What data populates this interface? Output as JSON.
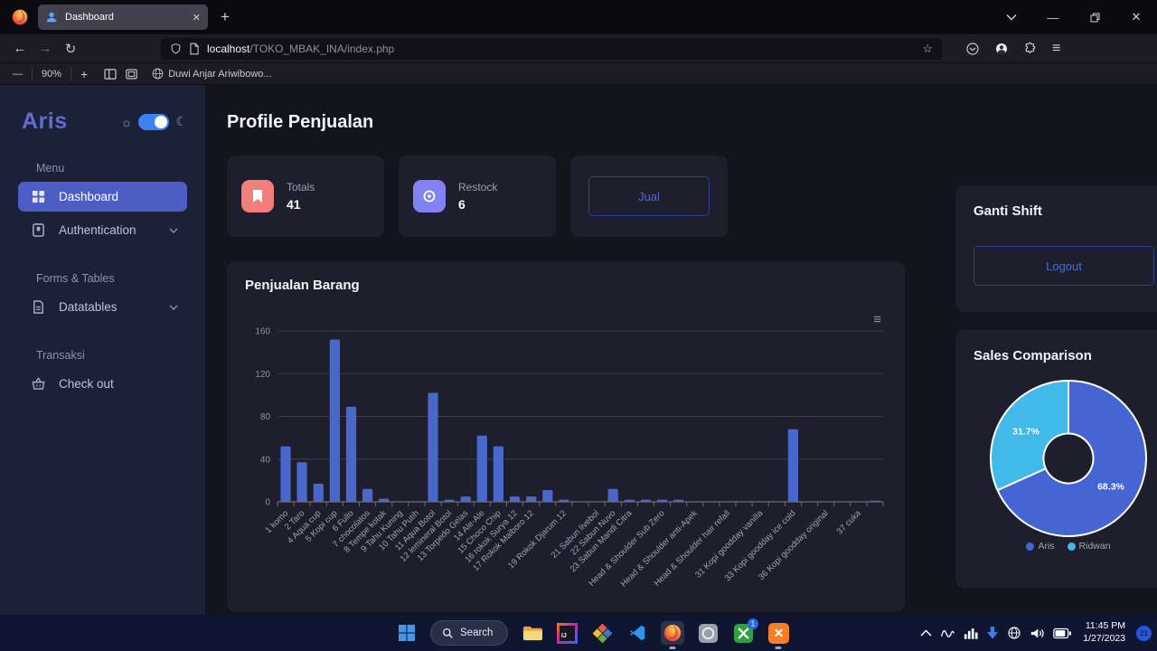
{
  "browser": {
    "tab_title": "Dashboard",
    "url_host": "localhost",
    "url_path": "/TOKO_MBAK_INA/index.php",
    "zoom_level": "90%",
    "bookmark_label": "Duwi Anjar Ariwibowo..."
  },
  "sidebar": {
    "brand": "Aris",
    "section_menu": "Menu",
    "item_dashboard": "Dashboard",
    "item_authentication": "Authentication",
    "section_forms": "Forms & Tables",
    "item_datatables": "Datatables",
    "section_transaksi": "Transaksi",
    "item_checkout": "Check out"
  },
  "main": {
    "page_title": "Profile Penjualan",
    "stat1_label": "Totals",
    "stat1_value": "41",
    "stat2_label": "Restock",
    "stat2_value": "6",
    "jual_button": "Jual",
    "shift_title": "Ganti Shift",
    "logout_button": "Logout"
  },
  "chart_data": [
    {
      "type": "bar",
      "title": "Penjualan Barang",
      "slots": 37,
      "ylim": [
        0,
        160
      ],
      "yticks": [
        0,
        40,
        80,
        120,
        160
      ],
      "bar_color": "#4a67cc",
      "grid": true,
      "values": [
        52,
        37,
        17,
        152,
        89,
        12,
        3,
        0,
        0,
        102,
        2,
        5,
        62,
        52,
        5,
        5,
        11,
        2,
        0,
        0,
        12,
        2,
        2,
        2,
        2,
        0,
        0,
        0,
        0,
        0,
        0,
        68,
        0,
        0,
        0,
        0,
        1
      ],
      "labels": [
        {
          "slot": 1,
          "text": "1 komo"
        },
        {
          "slot": 2,
          "text": "2 Taro"
        },
        {
          "slot": 3,
          "text": "4 Aqua cup"
        },
        {
          "slot": 4,
          "text": "5 Kopi cup"
        },
        {
          "slot": 5,
          "text": "6 Fullo"
        },
        {
          "slot": 6,
          "text": "7 chocolatos"
        },
        {
          "slot": 7,
          "text": "8 Tempe kotak"
        },
        {
          "slot": 8,
          "text": "9 Tahu Kuning"
        },
        {
          "slot": 9,
          "text": "10 Tahu Putih"
        },
        {
          "slot": 10,
          "text": "11 Aqua Botol"
        },
        {
          "slot": 11,
          "text": "12 lemineral Botol"
        },
        {
          "slot": 12,
          "text": "13 Torpedo Gelas"
        },
        {
          "slot": 13,
          "text": "14 Ale-Ale"
        },
        {
          "slot": 14,
          "text": "15 Choco Chip"
        },
        {
          "slot": 15,
          "text": "16 rokok Surya 12"
        },
        {
          "slot": 16,
          "text": "17 Rokok Malboro 12"
        },
        {
          "slot": 18,
          "text": "19 Rokok Djarum 12"
        },
        {
          "slot": 20,
          "text": "21 Sabun livebol"
        },
        {
          "slot": 21,
          "text": "22 Sabun Nuvo"
        },
        {
          "slot": 22,
          "text": "23 Sabun Mandi Citra"
        },
        {
          "slot": 24,
          "text": "Head & Shoulder Sub Zero"
        },
        {
          "slot": 26,
          "text": "Head & Shoulder anti-Apek"
        },
        {
          "slot": 28,
          "text": "Head & Shoulder hair refall"
        },
        {
          "slot": 30,
          "text": "31 Kopi goodday vanilla"
        },
        {
          "slot": 32,
          "text": "33 Kopi goodday ice cold"
        },
        {
          "slot": 34,
          "text": "36 Kopi goodday original"
        },
        {
          "slot": 36,
          "text": "37 cuka"
        }
      ]
    },
    {
      "type": "doughnut",
      "title": "Sales Comparison",
      "cutout_pct": 32,
      "legend_position": "bottom",
      "series": [
        {
          "name": "Aris",
          "value": 68.3,
          "label": "68.3%",
          "color": "#4565d2"
        },
        {
          "name": "Ridwan",
          "value": 31.7,
          "label": "31.7%",
          "color": "#41b9e9"
        }
      ]
    }
  ],
  "taskbar": {
    "search_label": "Search",
    "time": "11:45 PM",
    "date": "1/27/2023",
    "badge_count": "21"
  }
}
